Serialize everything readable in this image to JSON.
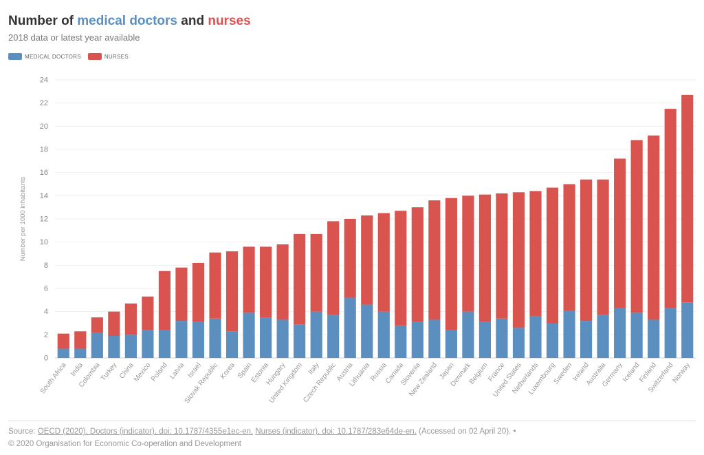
{
  "title": {
    "prefix": "Number of",
    "doctors": "medical doctors",
    "and": "and",
    "nurses": "nurses"
  },
  "subtitle": "2018 data or latest year available",
  "legend": {
    "doctors": "MEDICAL DOCTORS",
    "nurses": "NURSES"
  },
  "source": {
    "prefix": "Source:",
    "doctors_link": "OECD (2020), Doctors (indicator), doi: 10.1787/4355e1ec-en,",
    "nurses_link": "Nurses (indicator), doi: 10.1787/283e64de-en.",
    "accessed": "(Accessed on 02 April 20). •"
  },
  "copyright": "© 2020 Organisation for Economic Co-operation and Development",
  "colors": {
    "doctors": "#5b8fbf",
    "nurses": "#d9534f"
  },
  "chart_data": {
    "type": "bar",
    "stacked": true,
    "ylabel": "Number per 1000 inhabitants",
    "ylim": [
      0,
      24
    ],
    "yticks": [
      0,
      2,
      4,
      6,
      8,
      10,
      12,
      14,
      16,
      18,
      20,
      22,
      24
    ],
    "grid": true,
    "legend_position": "top-left",
    "categories": [
      "South Africa",
      "India",
      "Colombia",
      "Turkey",
      "China",
      "Mexico",
      "Poland",
      "Latvia",
      "Israel",
      "Slovak Republic",
      "Korea",
      "Spain",
      "Estonia",
      "Hungary",
      "United Kingdom",
      "Italy",
      "Czech Republic",
      "Austria",
      "Lithuania",
      "Russia",
      "Canada",
      "Slovenia",
      "New Zealand",
      "Japan",
      "Denmark",
      "Belgium",
      "France",
      "United States",
      "Netherlands",
      "Luxembourg",
      "Sweden",
      "Ireland",
      "Australia",
      "Germany",
      "Iceland",
      "Finland",
      "Switzerland",
      "Norway"
    ],
    "series": [
      {
        "name": "MEDICAL DOCTORS",
        "values": [
          0.8,
          0.8,
          2.2,
          1.9,
          2.0,
          2.4,
          2.4,
          3.2,
          3.1,
          3.4,
          2.3,
          3.9,
          3.5,
          3.3,
          2.9,
          4.0,
          3.7,
          5.2,
          4.6,
          4.0,
          2.8,
          3.1,
          3.3,
          2.4,
          4.0,
          3.1,
          3.4,
          2.6,
          3.6,
          3.0,
          4.1,
          3.2,
          3.7,
          4.3,
          3.9,
          3.3,
          4.3,
          4.8
        ]
      },
      {
        "name": "NURSES",
        "values": [
          1.3,
          1.5,
          1.3,
          2.1,
          2.7,
          2.9,
          5.1,
          4.6,
          5.1,
          5.7,
          6.9,
          5.7,
          6.1,
          6.5,
          7.8,
          6.7,
          8.1,
          6.8,
          7.7,
          8.5,
          9.9,
          9.9,
          10.3,
          11.4,
          10.0,
          11.0,
          10.8,
          11.7,
          10.8,
          11.7,
          10.9,
          12.2,
          11.7,
          12.9,
          14.9,
          15.9,
          17.2,
          17.9
        ]
      }
    ]
  }
}
